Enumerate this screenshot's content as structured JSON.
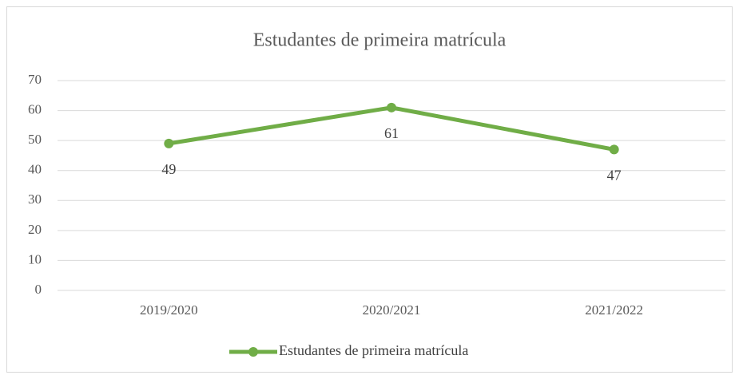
{
  "chart_data": {
    "type": "line",
    "title": "Estudantes de primeira matrícula",
    "categories": [
      "2019/2020",
      "2020/2021",
      "2021/2022"
    ],
    "series": [
      {
        "name": "Estudantes de primeira matrícula",
        "color": "#70ad47",
        "values": [
          49,
          61,
          47
        ]
      }
    ],
    "ylim": [
      0,
      70
    ],
    "yticks": [
      0,
      10,
      20,
      30,
      40,
      50,
      60,
      70
    ],
    "grid": true,
    "legend": "bottom",
    "data_labels": true
  }
}
